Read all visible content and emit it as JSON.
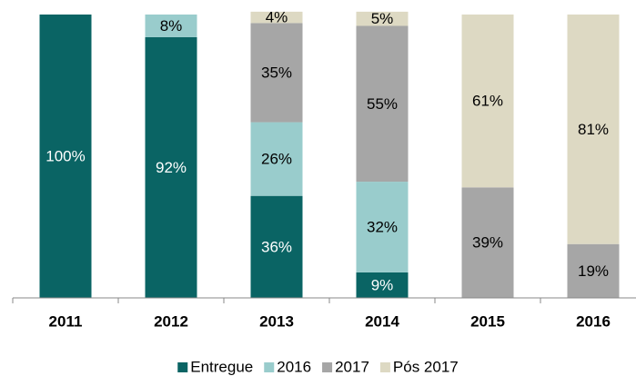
{
  "chart_data": {
    "type": "bar",
    "stacked": true,
    "categories": [
      "2011",
      "2012",
      "2013",
      "2014",
      "2015",
      "2016"
    ],
    "series": [
      {
        "name": "Entregue",
        "color": "#0a6464",
        "label_color": "#ffffff",
        "values": [
          100,
          92,
          36,
          9,
          null,
          null
        ],
        "value_labels": [
          "100%",
          "92%",
          "36%",
          "9%",
          null,
          null
        ]
      },
      {
        "name": "2016",
        "color": "#99cccc",
        "label_color": "#000000",
        "values": [
          null,
          8,
          26,
          32,
          null,
          null
        ],
        "value_labels": [
          null,
          "8%",
          "26%",
          "32%",
          null,
          null
        ]
      },
      {
        "name": "2017",
        "color": "#a6a6a6",
        "label_color": "#000000",
        "values": [
          null,
          null,
          35,
          55,
          39,
          19
        ],
        "value_labels": [
          null,
          null,
          "35%",
          "55%",
          "39%",
          "19%"
        ]
      },
      {
        "name": "Pós 2017",
        "color": "#ddd9c3",
        "label_color": "#000000",
        "values": [
          null,
          null,
          4,
          5,
          61,
          81
        ],
        "value_labels": [
          null,
          null,
          "4%",
          "5%",
          "61%",
          "81%"
        ]
      }
    ],
    "ylim": [
      0,
      100
    ],
    "legend": "bottom"
  }
}
